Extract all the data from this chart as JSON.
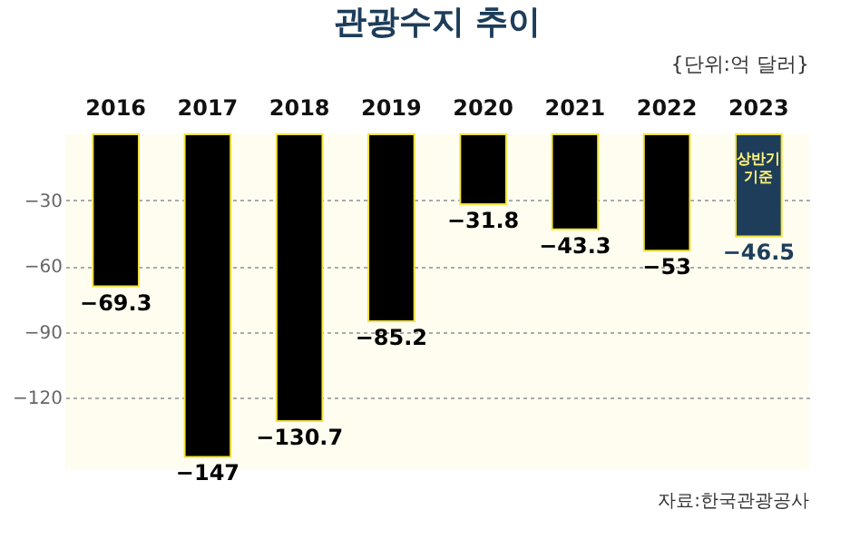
{
  "chart_data": {
    "type": "bar",
    "title": "관광수지 추이",
    "subtitle": "{단위:억 달러}",
    "categories": [
      "2016",
      "2017",
      "2018",
      "2019",
      "2020",
      "2021",
      "2022",
      "2023"
    ],
    "values": [
      -69.3,
      -147,
      -130.7,
      -85.2,
      -31.8,
      -43.3,
      -53,
      -46.5
    ],
    "colors": [
      "#000000",
      "#000000",
      "#000000",
      "#000000",
      "#000000",
      "#000000",
      "#000000",
      "#1d3d5a"
    ],
    "ylim": [
      -153,
      0
    ],
    "yticks": [
      -30,
      -60,
      -90,
      -120
    ],
    "grid": "y",
    "data_labels": true,
    "annotations": [
      "상반기 기준",
      "자료:한국관광공사"
    ]
  }
}
